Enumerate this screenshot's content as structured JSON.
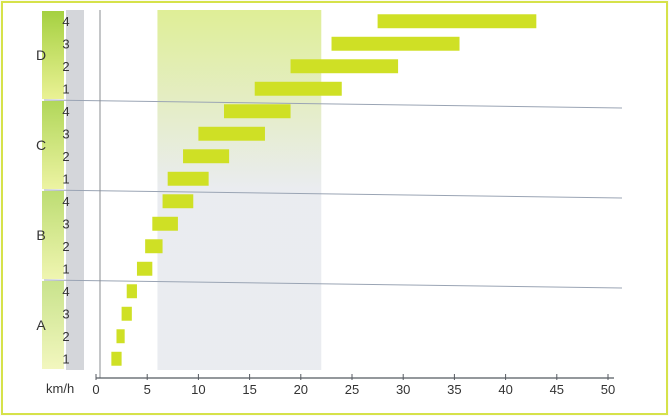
{
  "chart_data": {
    "type": "bar",
    "subtype": "floating-horizontal-range",
    "title": "",
    "xlabel": "km/h",
    "ylabel": "",
    "xlim": [
      0,
      50
    ],
    "x_ticks": [
      0,
      5,
      10,
      15,
      20,
      25,
      30,
      35,
      40,
      45,
      50
    ],
    "highlight_band": {
      "from": 6,
      "to": 22
    },
    "groups": [
      {
        "name": "A",
        "gears": [
          {
            "gear": "1",
            "min": 1.5,
            "max": 2.5
          },
          {
            "gear": "2",
            "min": 2.0,
            "max": 2.8
          },
          {
            "gear": "3",
            "min": 2.5,
            "max": 3.5
          },
          {
            "gear": "4",
            "min": 3.0,
            "max": 4.0
          }
        ]
      },
      {
        "name": "B",
        "gears": [
          {
            "gear": "1",
            "min": 4.0,
            "max": 5.5
          },
          {
            "gear": "2",
            "min": 4.8,
            "max": 6.5
          },
          {
            "gear": "3",
            "min": 5.5,
            "max": 8.0
          },
          {
            "gear": "4",
            "min": 6.5,
            "max": 9.5
          }
        ]
      },
      {
        "name": "C",
        "gears": [
          {
            "gear": "1",
            "min": 7.0,
            "max": 11.0
          },
          {
            "gear": "2",
            "min": 8.5,
            "max": 13.0
          },
          {
            "gear": "3",
            "min": 10.0,
            "max": 16.5
          },
          {
            "gear": "4",
            "min": 12.5,
            "max": 19.0
          }
        ]
      },
      {
        "name": "D",
        "gears": [
          {
            "gear": "1",
            "min": 15.5,
            "max": 24.0
          },
          {
            "gear": "2",
            "min": 19.0,
            "max": 29.5
          },
          {
            "gear": "3",
            "min": 23.0,
            "max": 35.5
          },
          {
            "gear": "4",
            "min": 27.5,
            "max": 43.0
          }
        ]
      }
    ],
    "grid": false,
    "legend": "none",
    "colors": {
      "bar": "#cfe025",
      "frame": "#d6e24a",
      "band": "#e6e9ee",
      "band_top": "#d9eb84",
      "group_column": "#b8d63a",
      "gear_column": "#d4d6da",
      "text": "#333333"
    }
  }
}
